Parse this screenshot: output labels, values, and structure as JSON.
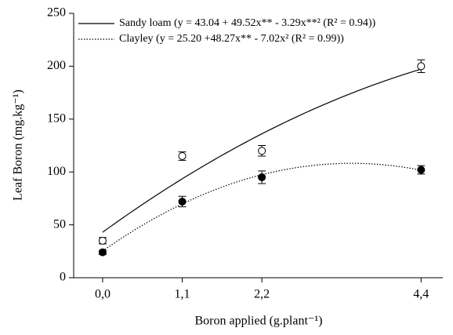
{
  "chart_data": {
    "type": "scatter",
    "x_label": "Boron applied (g.plant⁻¹)",
    "y_label": "Leaf Boron (mg.kg⁻¹)",
    "x": [
      0,
      1.1,
      2.2,
      4.4
    ],
    "series": [
      {
        "name": "Sandy loam (y = 43.04 + 49.52x** - 3.29x**² (R² = 0.94))",
        "color": "#000000",
        "marker": "open",
        "line_style": "solid",
        "values": [
          35,
          115,
          120,
          200
        ],
        "errors": [
          3,
          4,
          5,
          6
        ],
        "fit": [
          43.04,
          49.52,
          -3.29
        ]
      },
      {
        "name": "Clayley (y = 25.20 +48.27x** - 7.02x² (R² = 0.99))",
        "color": "#000000",
        "marker": "filled",
        "line_style": "dotted",
        "values": [
          24,
          72,
          95,
          102
        ],
        "errors": [
          2,
          5,
          6,
          4
        ],
        "fit": [
          25.2,
          48.27,
          -7.02
        ]
      }
    ],
    "xlim": [
      -0.4,
      4.7
    ],
    "xticks": [
      {
        "value": 0,
        "label": "0,0"
      },
      {
        "value": 1.1,
        "label": "1,1"
      },
      {
        "value": 2.2,
        "label": "2,2"
      },
      {
        "value": 4.4,
        "label": "4,4"
      }
    ],
    "ylim": [
      0,
      250
    ],
    "yticks": [
      0,
      50,
      100,
      150,
      200,
      250
    ],
    "legend": "upper left"
  }
}
